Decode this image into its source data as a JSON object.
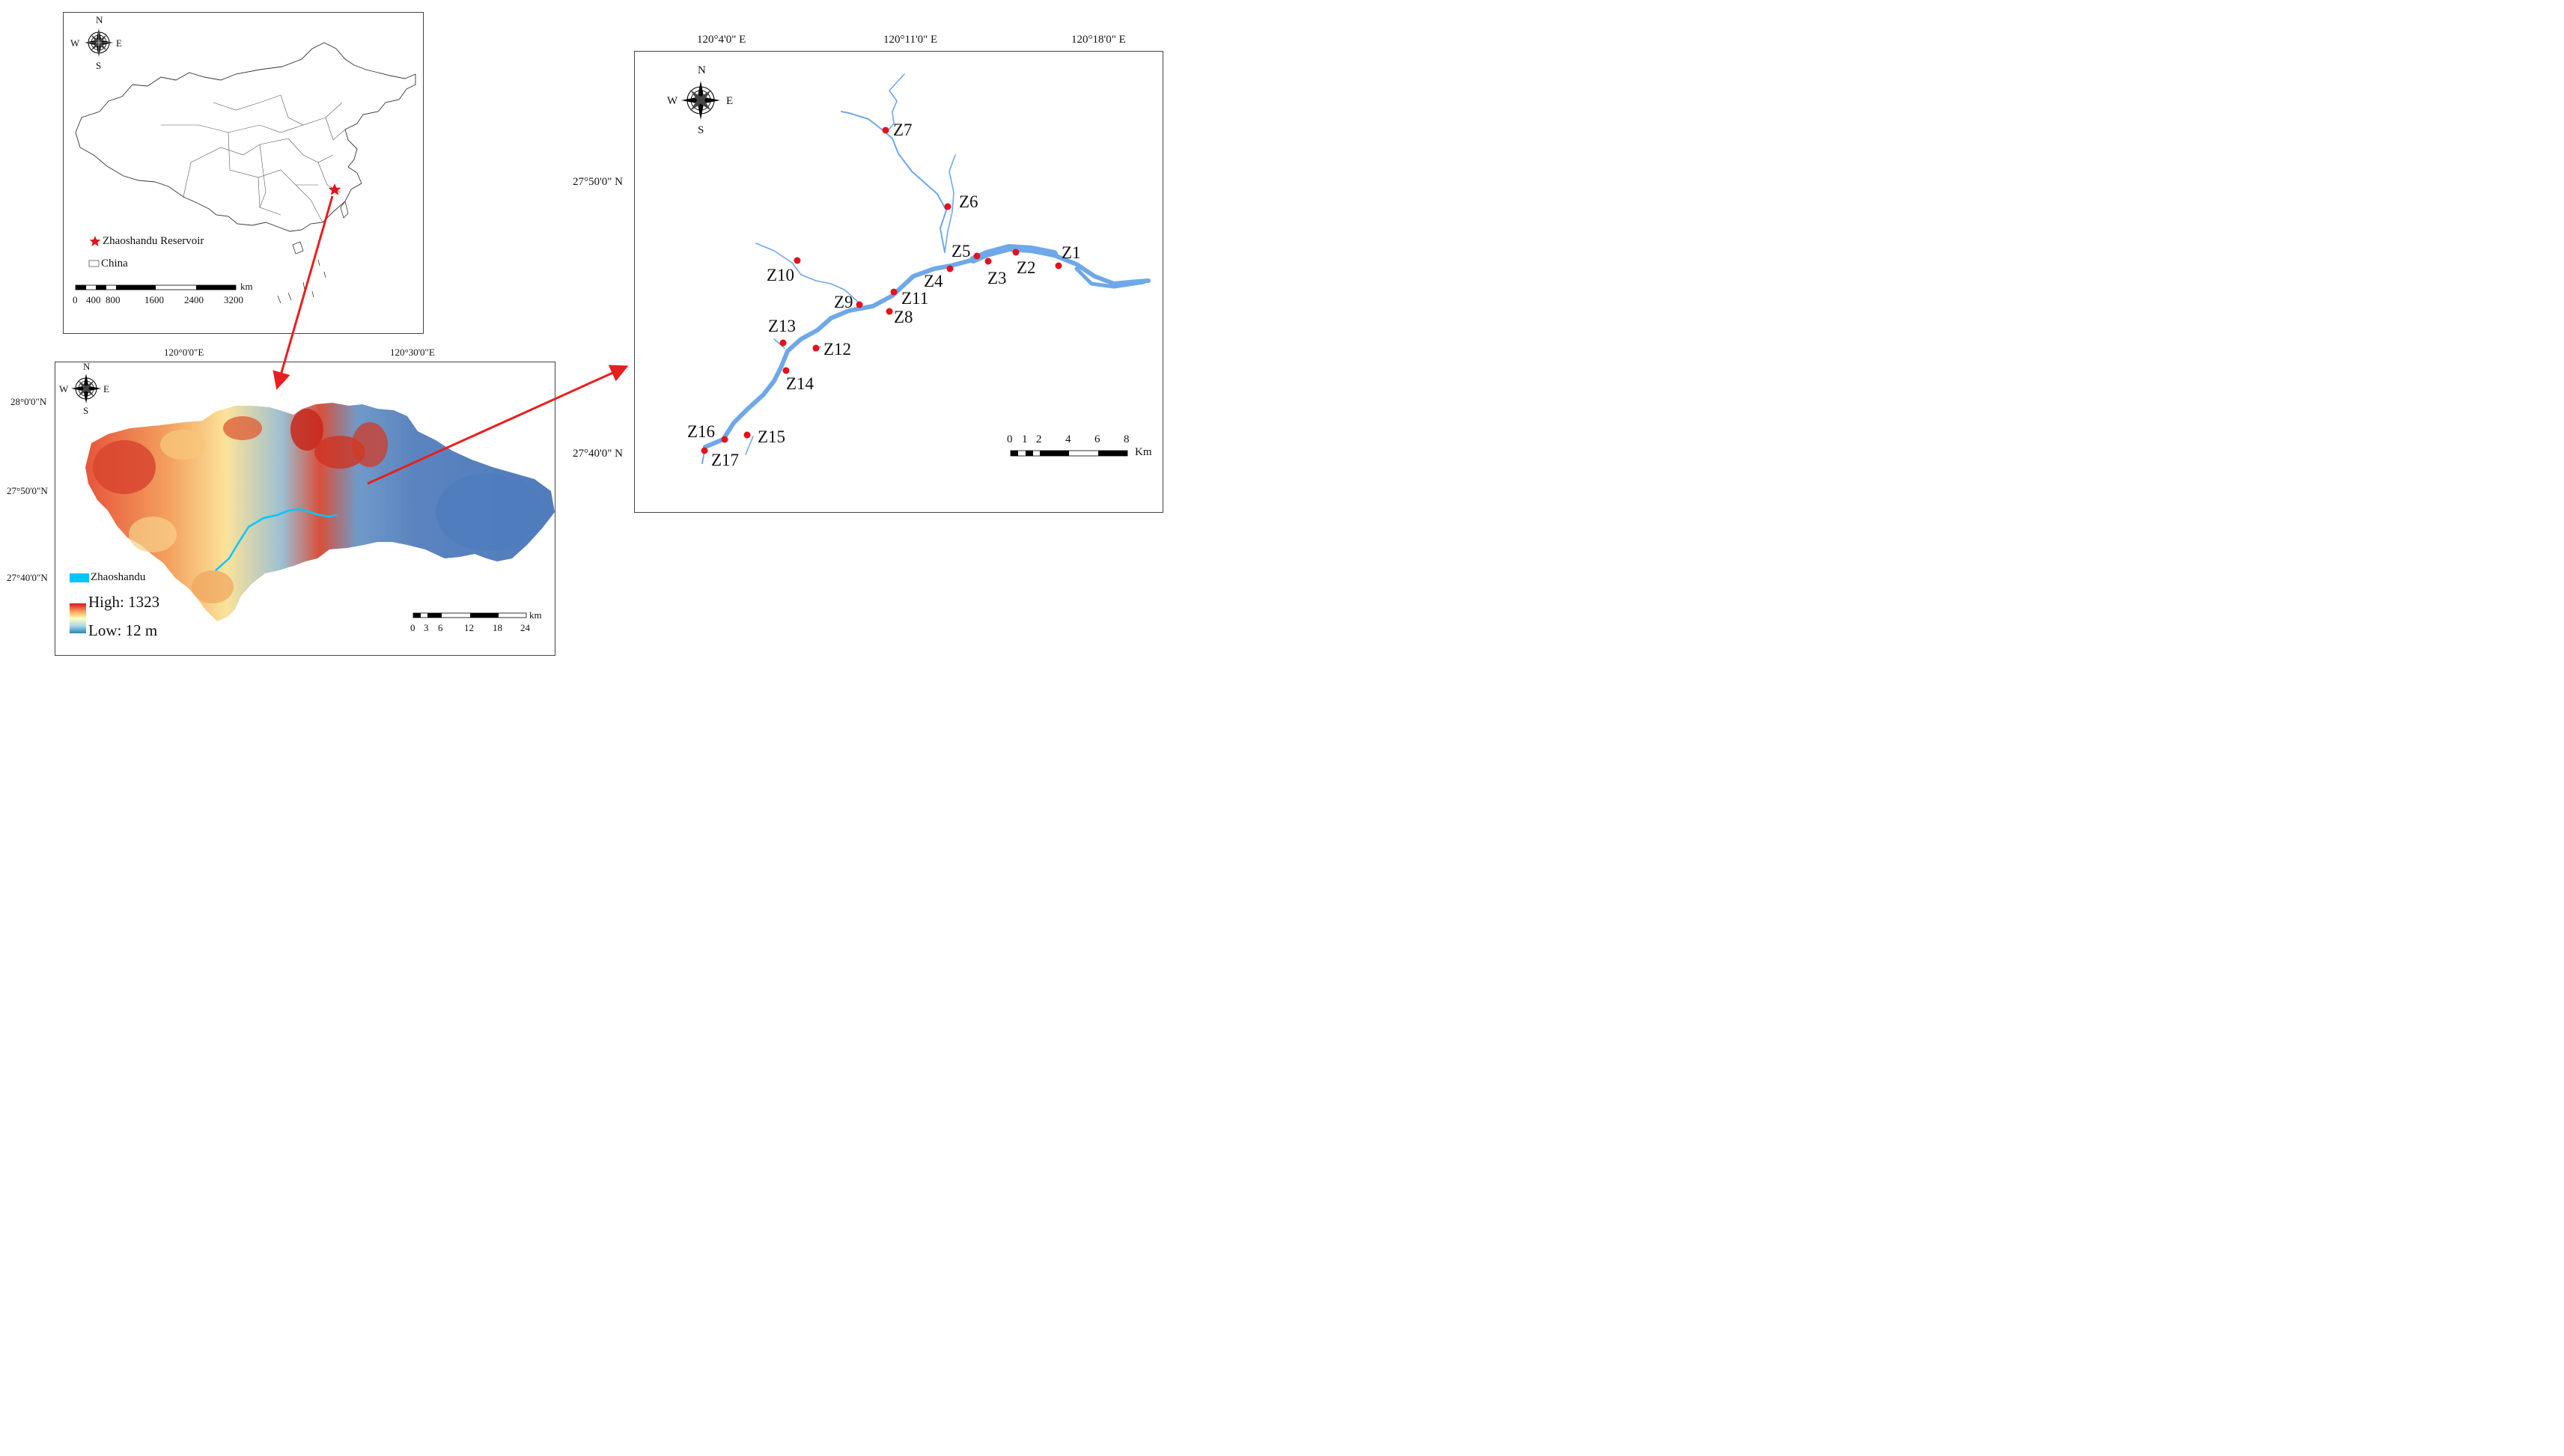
{
  "china_map": {
    "north": "N",
    "south": "S",
    "east": "E",
    "west": "W",
    "legend": {
      "reservoir": "Zhaoshandu Reservoir",
      "country": "China"
    },
    "scale": {
      "unit": "km",
      "ticks": [
        "0",
        "400",
        "800",
        "1600",
        "2400",
        "3200"
      ]
    }
  },
  "dem_map": {
    "north": "N",
    "south": "S",
    "east": "E",
    "west": "W",
    "lon_labels": [
      "120°0'0\"E",
      "120°30'0\"E"
    ],
    "lat_labels": [
      "28°0'0\"N",
      "27°50'0\"N",
      "27°40'0\"N"
    ],
    "legend": {
      "water": "Zhaoshandu",
      "high": "High: 1323",
      "low": "Low: 12 m"
    },
    "scale": {
      "unit": "km",
      "ticks": [
        "0",
        "3",
        "6",
        "12",
        "18",
        "24"
      ]
    },
    "colors": {
      "high": "#d7191c",
      "mid": "#ffffbf",
      "low": "#2b83ba",
      "water": "#00c5ff"
    }
  },
  "reservoir_map": {
    "north": "N",
    "south": "S",
    "east": "E",
    "west": "W",
    "lon_labels": [
      "120°4'0\" E",
      "120°11'0\" E",
      "120°18'0\" E"
    ],
    "lat_labels": [
      "27°50'0\" N",
      "27°40'0\" N"
    ],
    "scale": {
      "unit": "Km",
      "ticks": [
        "0",
        "1",
        "2",
        "4",
        "6",
        "8"
      ]
    },
    "sites": [
      "Z1",
      "Z2",
      "Z3",
      "Z4",
      "Z5",
      "Z6",
      "Z7",
      "Z8",
      "Z9",
      "Z10",
      "Z11",
      "Z12",
      "Z13",
      "Z14",
      "Z15",
      "Z16",
      "Z17"
    ],
    "colors": {
      "water": "#6fa8e8",
      "site": "#e3121b"
    }
  },
  "arrows_color": "#e81f1f"
}
